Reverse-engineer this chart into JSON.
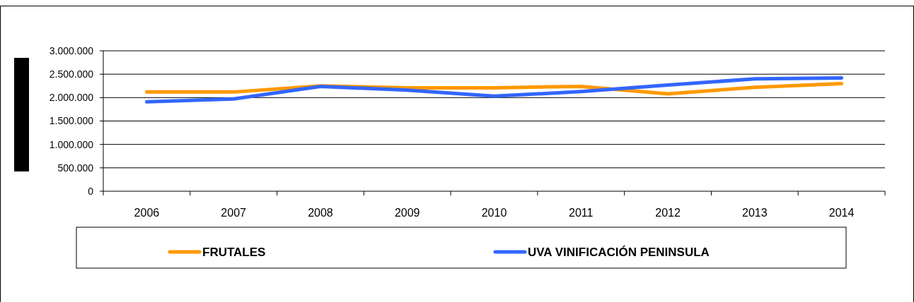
{
  "chart_data": {
    "type": "line",
    "categories": [
      "2006",
      "2007",
      "2008",
      "2009",
      "2010",
      "2011",
      "2012",
      "2013",
      "2014"
    ],
    "series": [
      {
        "name": "FRUTALES",
        "color": "#ff9900",
        "values": [
          2120000,
          2120000,
          2250000,
          2210000,
          2210000,
          2240000,
          2080000,
          2220000,
          2300000
        ]
      },
      {
        "name": "UVA VINIFICACIÓN PENINSULA",
        "color": "#3366ff",
        "values": [
          1910000,
          1970000,
          2240000,
          2160000,
          2030000,
          2130000,
          2270000,
          2400000,
          2420000
        ]
      }
    ],
    "ylim": [
      0,
      3000000
    ],
    "yticks": [
      {
        "value": 0,
        "label": "0"
      },
      {
        "value": 500000,
        "label": "500.000"
      },
      {
        "value": 1000000,
        "label": "1.000.000"
      },
      {
        "value": 1500000,
        "label": "1.500.000"
      },
      {
        "value": 2000000,
        "label": "2.000.000"
      },
      {
        "value": 2500000,
        "label": "2.500.000"
      },
      {
        "value": 3000000,
        "label": "3.000.000"
      }
    ],
    "grid": "y",
    "legend": "bottom",
    "marker": "none",
    "line_style": "solid"
  }
}
